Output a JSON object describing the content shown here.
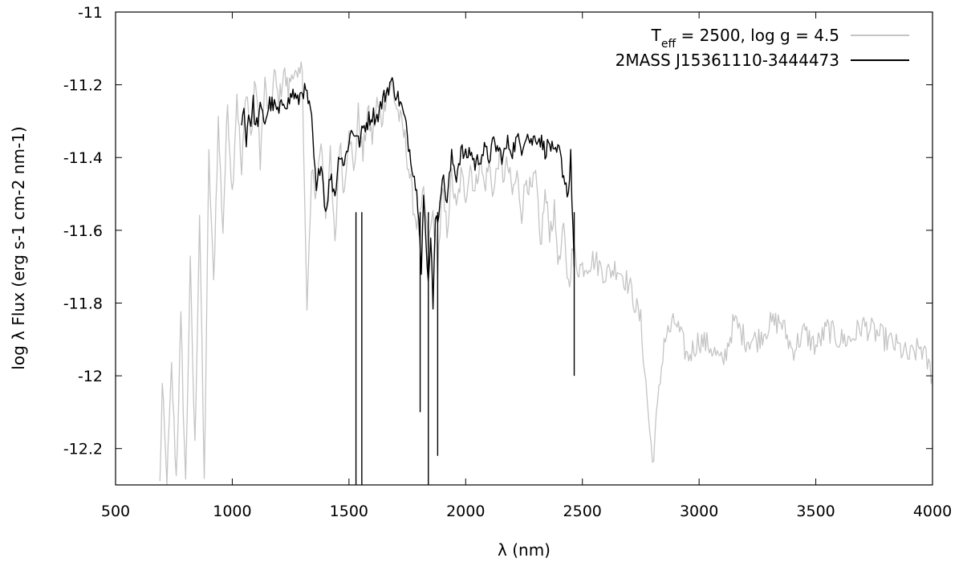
{
  "chart_data": {
    "type": "line",
    "title": "",
    "xlabel": "λ (nm)",
    "ylabel": "log λ Flux (erg s-1 cm-2 nm-1)",
    "xlim": [
      500,
      4000
    ],
    "ylim": [
      -12.3,
      -11.0
    ],
    "xticks": [
      "500",
      "1000",
      "1500",
      "2000",
      "2500",
      "3000",
      "3500",
      "4000"
    ],
    "yticks": [
      "-11",
      "-11.2",
      "-11.4",
      "-11.6",
      "-11.8",
      "-12",
      "-12.2"
    ],
    "grid": false,
    "legend_position": "top-right",
    "legend": {
      "model_T": "T",
      "model_sub": "eff",
      "model_rest": " = 2500, log g = 4.5",
      "observed": "2MASS J15361110-3444473"
    },
    "colors": {
      "model": "#c4c4c4",
      "observed": "#000000",
      "frame": "#000000"
    },
    "series": [
      {
        "x": [
          690,
          700,
          720,
          740,
          760,
          780,
          800,
          820,
          840,
          860,
          880,
          900,
          920,
          940,
          960,
          980,
          1000,
          1020,
          1040,
          1060,
          1080,
          1100,
          1120,
          1140,
          1160,
          1180,
          1200,
          1220,
          1240,
          1260,
          1280,
          1300,
          1320,
          1340,
          1360,
          1380,
          1400,
          1420,
          1440,
          1460,
          1480,
          1500,
          1520,
          1540,
          1560,
          1580,
          1600,
          1620,
          1640,
          1660,
          1680,
          1700,
          1720,
          1740,
          1760,
          1780,
          1800,
          1820,
          1840,
          1860,
          1880,
          1900,
          1920,
          1940,
          1960,
          1980,
          2000,
          2020,
          2040,
          2060,
          2080,
          2100,
          2120,
          2140,
          2160,
          2180,
          2200,
          2220,
          2240,
          2260,
          2280,
          2300,
          2320,
          2340,
          2360,
          2380,
          2400,
          2420,
          2440,
          2460,
          2480,
          2500,
          2550,
          2600,
          2650,
          2700,
          2750,
          2800,
          2850,
          2900,
          2950,
          3000,
          3050,
          3100,
          3150,
          3200,
          3250,
          3300,
          3350,
          3400,
          3450,
          3500,
          3550,
          3600,
          3650,
          3700,
          3750,
          3800,
          3850,
          3900,
          3950,
          4000
        ],
        "y": [
          -12.3,
          -12.03,
          -12.3,
          -11.98,
          -12.28,
          -11.85,
          -12.3,
          -11.7,
          -12.2,
          -11.55,
          -12.3,
          -11.4,
          -11.75,
          -11.3,
          -11.6,
          -11.25,
          -11.5,
          -11.22,
          -11.45,
          -11.2,
          -11.35,
          -11.18,
          -11.4,
          -11.2,
          -11.3,
          -11.17,
          -11.25,
          -11.16,
          -11.22,
          -11.15,
          -11.2,
          -11.15,
          -11.83,
          -11.45,
          -11.5,
          -11.35,
          -11.55,
          -11.4,
          -11.65,
          -11.35,
          -11.5,
          -11.3,
          -11.45,
          -11.28,
          -11.4,
          -11.27,
          -11.35,
          -11.25,
          -11.3,
          -11.22,
          -11.2,
          -11.25,
          -11.3,
          -11.35,
          -11.45,
          -11.55,
          -11.6,
          -11.5,
          -11.65,
          -11.55,
          -11.7,
          -11.5,
          -11.6,
          -11.45,
          -11.55,
          -11.45,
          -11.5,
          -11.42,
          -11.5,
          -11.4,
          -11.48,
          -11.42,
          -11.5,
          -11.4,
          -11.45,
          -11.42,
          -11.5,
          -11.45,
          -11.55,
          -11.45,
          -11.5,
          -11.45,
          -11.65,
          -11.5,
          -11.6,
          -11.55,
          -11.7,
          -11.6,
          -11.75,
          -11.65,
          -11.7,
          -11.7,
          -11.68,
          -11.72,
          -11.7,
          -11.75,
          -11.85,
          -12.24,
          -11.9,
          -11.85,
          -11.95,
          -11.9,
          -11.92,
          -11.97,
          -11.85,
          -11.9,
          -11.9,
          -11.86,
          -11.85,
          -11.93,
          -11.88,
          -11.92,
          -11.87,
          -11.9,
          -11.9,
          -11.86,
          -11.88,
          -11.9,
          -11.92,
          -11.95,
          -11.92,
          -12.0
        ]
      },
      {
        "x": [
          1040,
          1050,
          1060,
          1070,
          1080,
          1090,
          1100,
          1120,
          1140,
          1160,
          1180,
          1200,
          1220,
          1240,
          1260,
          1280,
          1300,
          1320,
          1340,
          1360,
          1380,
          1400,
          1420,
          1440,
          1460,
          1480,
          1500,
          1510,
          1530,
          1540,
          1550,
          1560,
          1580,
          1600,
          1620,
          1640,
          1660,
          1680,
          1700,
          1720,
          1740,
          1760,
          1780,
          1800,
          1810,
          1820,
          1830,
          1840,
          1850,
          1860,
          1870,
          1880,
          1890,
          1900,
          1920,
          1940,
          1960,
          1980,
          2000,
          2020,
          2040,
          2060,
          2080,
          2100,
          2120,
          2140,
          2160,
          2180,
          2200,
          2220,
          2240,
          2260,
          2280,
          2300,
          2320,
          2340,
          2360,
          2380,
          2400,
          2420,
          2440,
          2450,
          2460,
          2465
        ],
        "y": [
          -11.3,
          -11.27,
          -11.35,
          -11.28,
          -11.3,
          -11.25,
          -11.32,
          -11.27,
          -11.3,
          -11.25,
          -11.26,
          -11.28,
          -11.24,
          -11.25,
          -11.22,
          -11.25,
          -11.21,
          -11.23,
          -11.3,
          -11.5,
          -11.4,
          -11.55,
          -11.45,
          -11.5,
          -11.38,
          -11.42,
          -11.35,
          -11.33,
          -11.33,
          -11.36,
          -11.35,
          -11.32,
          -11.3,
          -11.28,
          -11.29,
          -11.25,
          -11.22,
          -11.19,
          -11.22,
          -11.25,
          -11.3,
          -11.38,
          -11.45,
          -11.55,
          -11.7,
          -11.5,
          -11.65,
          -11.75,
          -11.6,
          -11.8,
          -11.55,
          -11.6,
          -11.5,
          -11.45,
          -11.52,
          -11.4,
          -11.45,
          -11.38,
          -11.4,
          -11.38,
          -11.42,
          -11.4,
          -11.38,
          -11.4,
          -11.36,
          -11.38,
          -11.4,
          -11.36,
          -11.38,
          -11.35,
          -11.37,
          -11.33,
          -11.36,
          -11.34,
          -11.35,
          -11.38,
          -11.36,
          -11.4,
          -11.38,
          -11.45,
          -11.5,
          -11.4,
          -11.6,
          -11.7
        ]
      }
    ]
  }
}
